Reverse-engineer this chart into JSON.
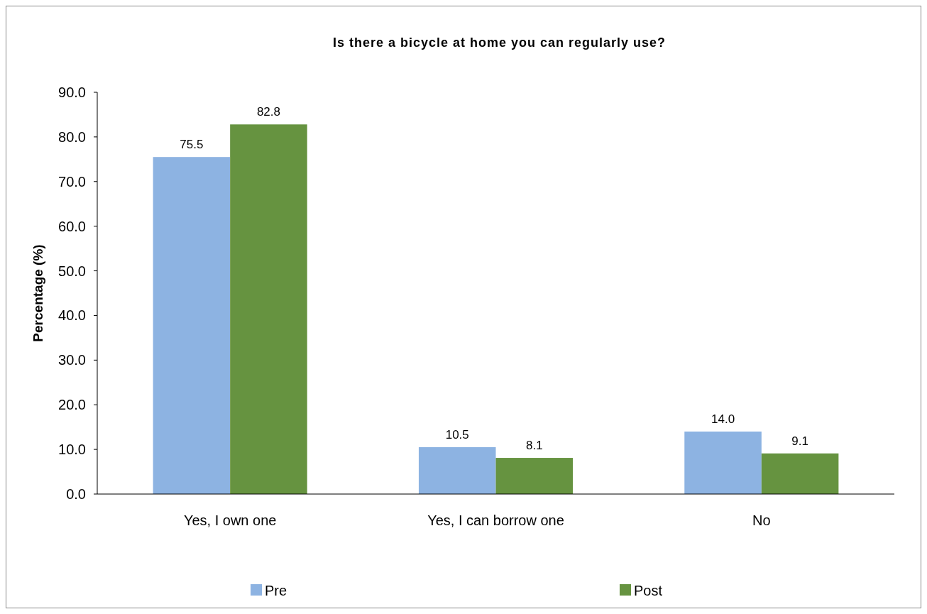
{
  "chart_data": {
    "type": "bar",
    "title": "Is there a bicycle at home you can regularly use?",
    "ylabel": "Percentage (%)",
    "categories": [
      "Yes, I own one",
      "Yes, I can borrow one",
      "No"
    ],
    "series": [
      {
        "name": "Pre",
        "color": "#8db3e2",
        "values": [
          75.5,
          10.5,
          14.0
        ],
        "value_labels": [
          "75.5",
          "10.5",
          "14.0"
        ]
      },
      {
        "name": "Post",
        "color": "#669340",
        "values": [
          82.8,
          8.1,
          9.1
        ],
        "value_labels": [
          "82.8",
          "8.1",
          "9.1"
        ]
      }
    ],
    "ylim": [
      0,
      90
    ],
    "yticks": [
      {
        "value": 0,
        "label": "0.0"
      },
      {
        "value": 10,
        "label": "10.0"
      },
      {
        "value": 20,
        "label": "20.0"
      },
      {
        "value": 30,
        "label": "30.0"
      },
      {
        "value": 40,
        "label": "40.0"
      },
      {
        "value": 50,
        "label": "50.0"
      },
      {
        "value": 60,
        "label": "60.0"
      },
      {
        "value": 70,
        "label": "70.0"
      },
      {
        "value": 80,
        "label": "80.0"
      },
      {
        "value": 90,
        "label": "90.0"
      }
    ],
    "legend": "bottom",
    "grid": false
  }
}
